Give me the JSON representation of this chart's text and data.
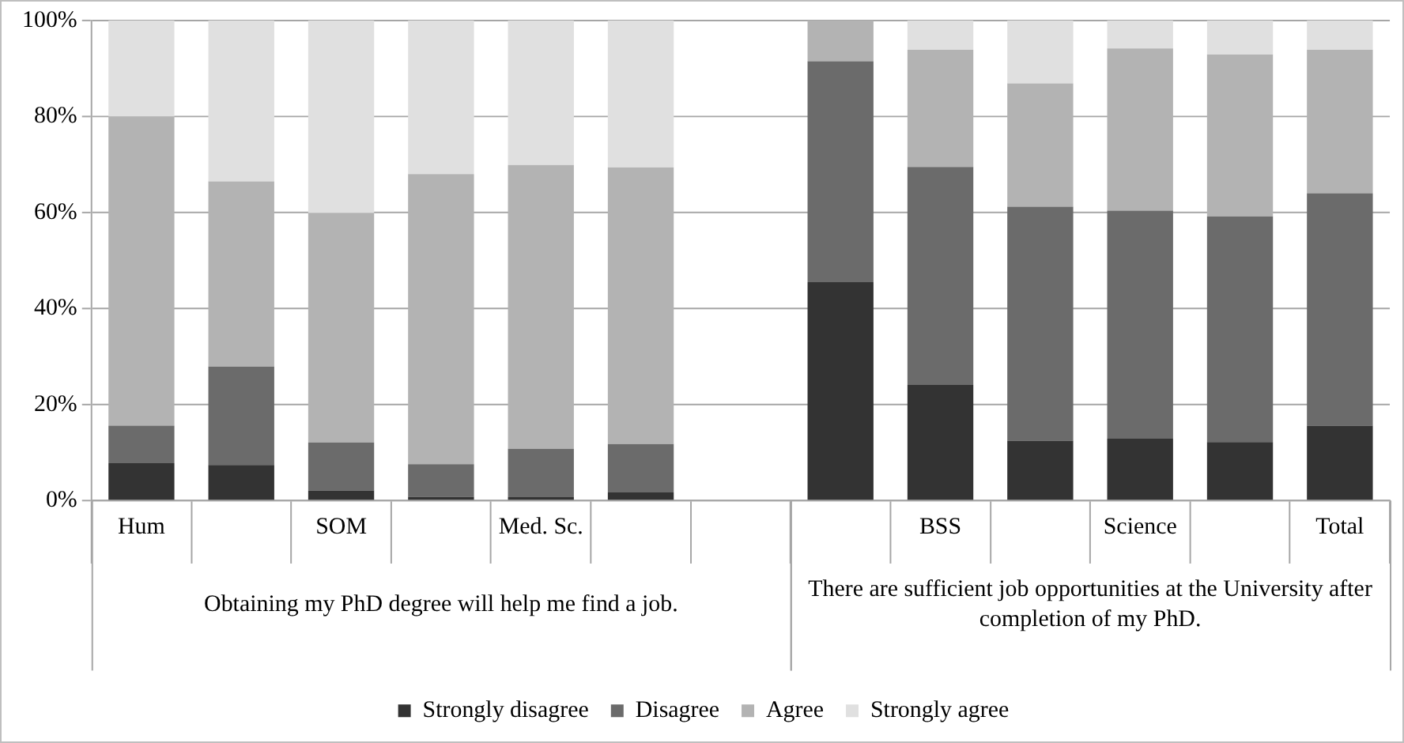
{
  "chart_data": {
    "type": "bar",
    "stacked": true,
    "categories": [
      "Hum",
      null,
      "SOM",
      null,
      "Med. Sc.",
      null,
      null,
      null,
      "BSS",
      null,
      "Science",
      null,
      "Total"
    ],
    "series": [
      {
        "name": "Strongly disagree",
        "color": "#333333",
        "values": [
          7.8,
          7.4,
          2.1,
          0.8,
          0.7,
          1.7,
          null,
          45.5,
          24.1,
          12.5,
          12.9,
          12.2,
          15.6
        ]
      },
      {
        "name": "Disagree",
        "color": "#6b6b6b",
        "values": [
          7.8,
          20.5,
          10,
          6.8,
          10.1,
          10.1,
          null,
          46,
          45.4,
          48.7,
          47.5,
          47,
          48.4
        ]
      },
      {
        "name": "Agree",
        "color": "#b3b3b3",
        "values": [
          64.4,
          38.6,
          47.8,
          60.4,
          59.1,
          57.6,
          null,
          8.5,
          24.4,
          25.7,
          33.8,
          33.7,
          29.9
        ]
      },
      {
        "name": "Strongly agree",
        "color": "#e0e0e0",
        "values": [
          20,
          33.5,
          40.1,
          32,
          30.1,
          30.6,
          null,
          0,
          6.1,
          13.1,
          5.8,
          7.1,
          6.1
        ]
      }
    ],
    "ylim": [
      0,
      100
    ],
    "yticks": [
      {
        "value": 0,
        "label": "0%"
      },
      {
        "value": 20,
        "label": "20%"
      },
      {
        "value": 40,
        "label": "40%"
      },
      {
        "value": 60,
        "label": "60%"
      },
      {
        "value": 80,
        "label": "80%"
      },
      {
        "value": 100,
        "label": "100%"
      }
    ],
    "grid": "y",
    "legend": "bottom",
    "annotations": [
      "Obtaining my PhD degree will help me find a job.",
      "There are sufficient job opportunities at the University after completion of my PhD."
    ]
  }
}
